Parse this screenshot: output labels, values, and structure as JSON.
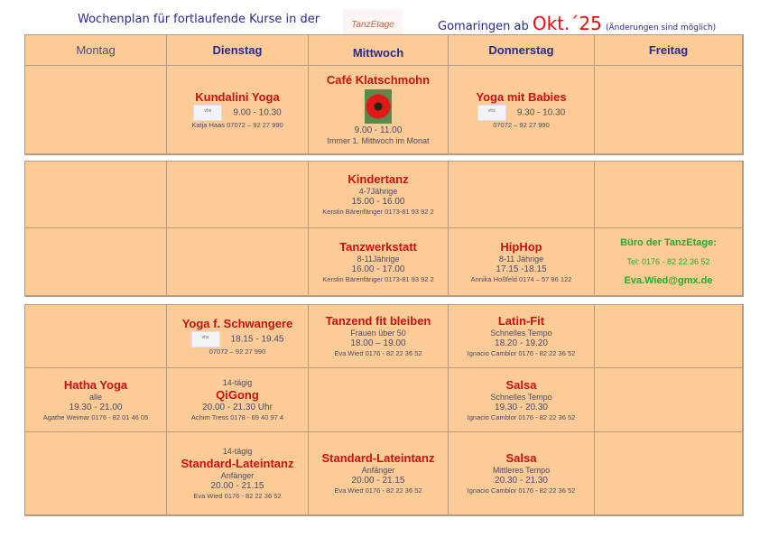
{
  "header": {
    "left": "Wochenplan für fortlaufende Kurse in der",
    "logo": "TanzEtage",
    "right": "Gomaringen ab",
    "date": "Okt.´25",
    "note": "(Änderungen sind möglich)"
  },
  "days": [
    "Montag",
    "Dienstag",
    "Mittwoch",
    "Donnerstag",
    "Freitag"
  ],
  "rows": [
    [
      [],
      [
        {
          "k": "title",
          "t": "Kundalini Yoga"
        },
        {
          "k": "time",
          "t": "9.00 - 10.30",
          "vhs": true
        },
        {
          "k": "contact",
          "t": "Katja Haas  07072 – 92 27 990"
        }
      ],
      [
        {
          "k": "title",
          "t": "Café Klatschmohn"
        },
        {
          "k": "poppy"
        },
        {
          "k": "time",
          "t": "9.00 - 11.00"
        },
        {
          "k": "sub",
          "t": "Immer 1. Mittwoch im Monat"
        }
      ],
      [
        {
          "k": "title",
          "t": "Yoga mit Babies"
        },
        {
          "k": "time",
          "t": "9.30 -  10.30",
          "vhs": true
        },
        {
          "k": "contact",
          "t": "07072 – 92 27 990"
        }
      ],
      []
    ],
    [
      [],
      [],
      [
        {
          "k": "title",
          "t": "Kindertanz"
        },
        {
          "k": "sub",
          "t": "4-7Jährige"
        },
        {
          "k": "time",
          "t": "15.00 - 16.00"
        },
        {
          "k": "contact",
          "t": "Kerstin Bärenfänger   0173-81 93 92 2"
        }
      ],
      [],
      []
    ],
    [
      [],
      [],
      [
        {
          "k": "title",
          "t": "Tanzwerkstatt"
        },
        {
          "k": "sub",
          "t": "8-11Jährige"
        },
        {
          "k": "time",
          "t": "16.00 - 17.00"
        },
        {
          "k": "contact",
          "t": "Kerstin Bärenfänger   0173-81 93 92 2"
        }
      ],
      [
        {
          "k": "title",
          "t": "HipHop"
        },
        {
          "k": "sub",
          "t": "8-11 Jährige"
        },
        {
          "k": "time",
          "t": "17.15 -18.15"
        },
        {
          "k": "contact",
          "t": "Annika Hoßfeld  0174 – 57 96 122"
        }
      ],
      [
        {
          "k": "green",
          "t": "Büro der TanzEtage:"
        },
        {
          "k": "greensmall",
          "t": "Tel: 0176 - 82 22 36 52"
        },
        {
          "k": "green",
          "t": "Eva.Wied@gmx.de"
        }
      ]
    ],
    [
      [],
      [
        {
          "k": "title",
          "t": "Yoga f. Schwangere"
        },
        {
          "k": "time",
          "t": "18.15 - 19.45",
          "vhs": true
        },
        {
          "k": "contact",
          "t": "07072 – 92 27 990"
        }
      ],
      [
        {
          "k": "title",
          "t": "Tanzend fit bleiben"
        },
        {
          "k": "sub",
          "t": "Frauen über 50"
        },
        {
          "k": "time",
          "t": "18.00 – 19.00"
        },
        {
          "k": "contact",
          "t": "Eva Wied  0176 - 82 22 36 52"
        }
      ],
      [
        {
          "k": "title",
          "t": "Latin-Fit"
        },
        {
          "k": "sub",
          "t": "Schnelles Tempo"
        },
        {
          "k": "time",
          "t": "18.20 - 19.20"
        },
        {
          "k": "contact",
          "t": "Ignacio Camblor  0176 - 82 22 36 52"
        }
      ],
      []
    ],
    [
      [
        {
          "k": "title",
          "t": "Hatha Yoga"
        },
        {
          "k": "sub",
          "t": "alle"
        },
        {
          "k": "time",
          "t": "19.30  - 21.00"
        },
        {
          "k": "contact",
          "t": "Agathe Weimar  0176 - 82 01 46 05"
        }
      ],
      [
        {
          "k": "sub",
          "t": "14-tägig"
        },
        {
          "k": "title",
          "t": "QiGong"
        },
        {
          "k": "time",
          "t": "20.00 - 21.30 Uhr"
        },
        {
          "k": "contact",
          "t": "Achim Tress  0178 - 69 40 97 4"
        }
      ],
      [],
      [
        {
          "k": "title",
          "t": "Salsa"
        },
        {
          "k": "sub",
          "t": "Schnelles Tempo"
        },
        {
          "k": "time",
          "t": "19.30 - 20.30"
        },
        {
          "k": "contact",
          "t": "Ignacio Camblor  0176 - 82 22 36 52"
        }
      ],
      []
    ],
    [
      [],
      [
        {
          "k": "sub",
          "t": "14-tägig"
        },
        {
          "k": "title",
          "t": "Standard-Lateintanz"
        },
        {
          "k": "sub",
          "t": "Anfänger"
        },
        {
          "k": "time",
          "t": "20.00 - 21.15"
        },
        {
          "k": "contact",
          "t": "Eva Wied  0176 - 82 22 36 52"
        }
      ],
      [
        {
          "k": "title",
          "t": "Standard-Lateintanz"
        },
        {
          "k": "sub",
          "t": "Anfänger"
        },
        {
          "k": "time",
          "t": "20.00 - 21.15"
        },
        {
          "k": "contact",
          "t": "Eva Wied  0176 - 82 22 36 52"
        }
      ],
      [
        {
          "k": "title",
          "t": "Salsa"
        },
        {
          "k": "sub",
          "t": "Mittleres Tempo"
        },
        {
          "k": "time",
          "t": "20.30 - 21.30"
        },
        {
          "k": "contact",
          "t": "Ignacio Camblor  0176 - 82 22 36 52"
        }
      ],
      []
    ]
  ]
}
